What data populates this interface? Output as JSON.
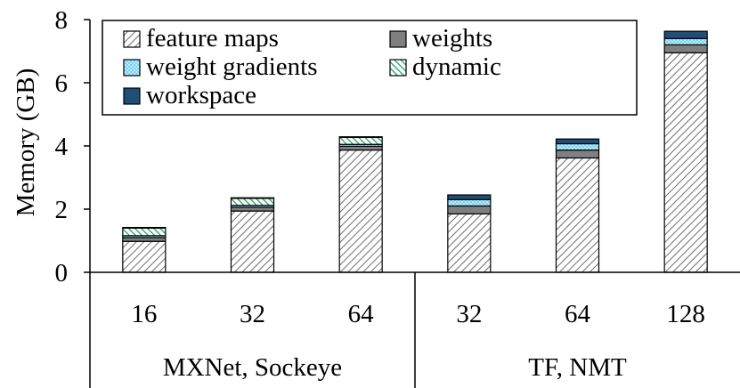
{
  "chart_data": {
    "type": "bar",
    "stacked": true,
    "ylabel": "Memory (GB)",
    "ylim": [
      0,
      8
    ],
    "yticks": [
      "0",
      "2",
      "4",
      "6",
      "8"
    ],
    "grid": false,
    "legend_position": "top-left",
    "groups": [
      {
        "label": "MXNet, Sockeye",
        "categories": [
          "16",
          "32",
          "64"
        ]
      },
      {
        "label": "TF, NMT",
        "categories": [
          "32",
          "64",
          "128"
        ]
      }
    ],
    "categories": [
      "16",
      "32",
      "64",
      "32",
      "64",
      "128"
    ],
    "series": [
      {
        "name": "feature maps",
        "pattern": "diagonal-hatch",
        "color": "#8c8c8c",
        "values": [
          0.98,
          1.94,
          3.87,
          1.85,
          3.62,
          6.95
        ]
      },
      {
        "name": "weights",
        "pattern": "solid",
        "color": "#7f7f7f",
        "values": [
          0.12,
          0.12,
          0.12,
          0.25,
          0.25,
          0.25
        ]
      },
      {
        "name": "weight gradients",
        "pattern": "dotted",
        "color": "#7fd3f2",
        "values": [
          0.06,
          0.06,
          0.06,
          0.2,
          0.2,
          0.2
        ]
      },
      {
        "name": "dynamic",
        "pattern": "green-hatch",
        "color": "#1f9e5a",
        "values": [
          0.24,
          0.22,
          0.22,
          0.0,
          0.0,
          0.0
        ]
      },
      {
        "name": "workspace",
        "pattern": "solid",
        "color": "#1f4e79",
        "values": [
          0.02,
          0.02,
          0.02,
          0.15,
          0.15,
          0.23
        ]
      }
    ]
  }
}
